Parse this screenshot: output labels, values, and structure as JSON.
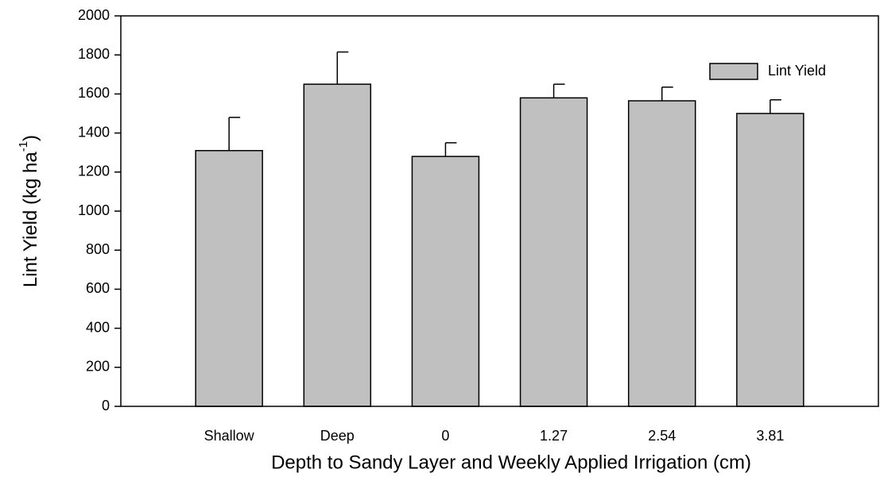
{
  "chart_data": {
    "type": "bar",
    "x_label": "Depth to Sandy Layer and Weekly Applied Irrigation (cm)",
    "y_label_parts": [
      "Lint Yield (kg ha",
      "-1",
      ")"
    ],
    "categories": [
      "Shallow",
      "Deep",
      "0",
      "1.27",
      "2.54",
      "3.81"
    ],
    "series": [
      {
        "name": "Lint Yield",
        "color": "#c0c0c0",
        "values": [
          1310,
          1650,
          1280,
          1580,
          1565,
          1500
        ],
        "errors": [
          170,
          165,
          70,
          70,
          70,
          70
        ]
      }
    ],
    "ylim": [
      0,
      2000
    ],
    "yticks": [
      0,
      200,
      400,
      600,
      800,
      1000,
      1200,
      1400,
      1600,
      1800,
      2000
    ],
    "legend": "upper right"
  }
}
